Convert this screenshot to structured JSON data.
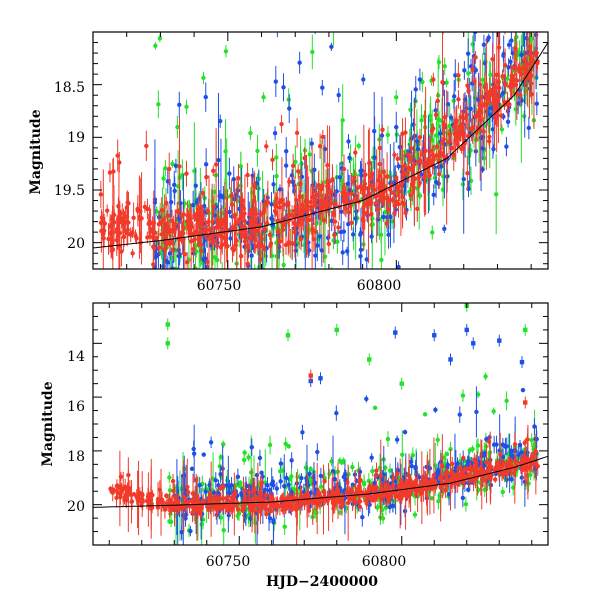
{
  "chart_data": [
    {
      "panel": "top",
      "type": "scatter",
      "title": "",
      "xlabel": "",
      "ylabel": "Magnitude",
      "xlim": [
        60710,
        60845
      ],
      "ylim": [
        20.25,
        18.0
      ],
      "y_inverted": true,
      "xticks": [
        "60750",
        "60800"
      ],
      "yticks": [
        "18.5",
        "19",
        "19.5",
        "20"
      ],
      "grid": false,
      "series": [
        {
          "color": "#22e22a",
          "x_range": [
            60728,
            60842
          ],
          "y_trend": [
            [
              60728,
              19.95
            ],
            [
              60800,
              19.55
            ],
            [
              60842,
              18.2
            ]
          ],
          "scatter": 0.9,
          "errorbar": true
        },
        {
          "color": "#1f50e6",
          "x_range": [
            60728,
            60842
          ],
          "y_trend": [
            [
              60728,
              19.95
            ],
            [
              60800,
              19.5
            ],
            [
              60842,
              18.15
            ]
          ],
          "scatter": 0.9,
          "errorbar": true
        },
        {
          "color": "#f23a2a",
          "x_range": [
            60712,
            60842
          ],
          "y_trend": [
            [
              60712,
              19.85
            ],
            [
              60760,
              19.85
            ],
            [
              60800,
              19.5
            ],
            [
              60842,
              18.25
            ]
          ],
          "scatter": 0.35,
          "errorbar": true
        }
      ],
      "model_curve": {
        "color": "#000000",
        "points": [
          [
            60710,
            20.05
          ],
          [
            60730,
            19.98
          ],
          [
            60760,
            19.85
          ],
          [
            60790,
            19.6
          ],
          [
            60815,
            19.2
          ],
          [
            60835,
            18.6
          ],
          [
            60845,
            18.1
          ]
        ]
      }
    },
    {
      "panel": "bottom",
      "type": "scatter",
      "title": "",
      "xlabel": "HJD−2400000",
      "ylabel": "Magnitude",
      "xlim": [
        60705,
        60845
      ],
      "ylim": [
        21.5,
        12.5
      ],
      "y_inverted": true,
      "xticks": [
        "60750",
        "60800"
      ],
      "yticks": [
        "14",
        "16",
        "18",
        "20"
      ],
      "grid": false,
      "series": [
        {
          "color": "#22e22a",
          "x_range": [
            60728,
            60842
          ],
          "y_trend": [
            [
              60728,
              19.9
            ],
            [
              60800,
              19.4
            ],
            [
              60842,
              18.3
            ]
          ],
          "scatter": 1.4,
          "errorbar": true,
          "outliers": [
            [
              60728,
              13.3
            ],
            [
              60728,
              14.0
            ],
            [
              60765,
              13.7
            ],
            [
              60780,
              13.5
            ],
            [
              60790,
              14.6
            ],
            [
              60820,
              12.6
            ],
            [
              60838,
              13.5
            ],
            [
              60800,
              15.5
            ]
          ]
        },
        {
          "color": "#1f50e6",
          "x_range": [
            60730,
            60842
          ],
          "y_trend": [
            [
              60730,
              19.9
            ],
            [
              60800,
              19.3
            ],
            [
              60842,
              18.1
            ]
          ],
          "scatter": 1.2,
          "errorbar": true,
          "outliers": [
            [
              60798,
              13.6
            ],
            [
              60810,
              13.7
            ],
            [
              60815,
              14.6
            ],
            [
              60820,
              13.5
            ],
            [
              60822,
              14.0
            ],
            [
              60830,
              13.9
            ],
            [
              60837,
              14.7
            ],
            [
              60772,
              15.4
            ],
            [
              60775,
              15.3
            ]
          ]
        },
        {
          "color": "#f23a2a",
          "x_range": [
            60710,
            60842
          ],
          "y_trend": [
            [
              60710,
              19.4
            ],
            [
              60728,
              20.0
            ],
            [
              60760,
              20.0
            ],
            [
              60800,
              19.5
            ],
            [
              60842,
              18.3
            ]
          ],
          "scatter": 0.4,
          "errorbar": true,
          "outliers": [
            [
              60772,
              15.2
            ],
            [
              60838,
              16.2
            ]
          ]
        }
      ],
      "model_curve": {
        "color": "#000000",
        "points": [
          [
            60705,
            20.1
          ],
          [
            60730,
            20.02
          ],
          [
            60760,
            19.9
          ],
          [
            60790,
            19.6
          ],
          [
            60815,
            19.2
          ],
          [
            60835,
            18.6
          ],
          [
            60845,
            18.2
          ]
        ]
      }
    }
  ]
}
